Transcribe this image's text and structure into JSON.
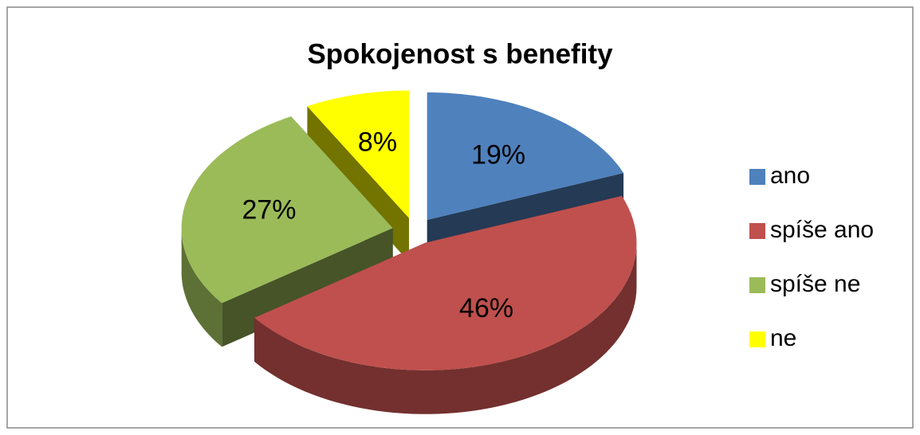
{
  "chart_data": {
    "type": "pie",
    "title": "Spokojenost s benefity",
    "categories": [
      "ano",
      "spíše ano",
      "spíše ne",
      "ne"
    ],
    "values": [
      19,
      46,
      27,
      8
    ],
    "value_labels": [
      "19%",
      "46%",
      "27%",
      "8%"
    ],
    "colors": [
      "#4f81bd",
      "#c0504d",
      "#9bbb59",
      "#ffff00"
    ],
    "legend": "right"
  }
}
